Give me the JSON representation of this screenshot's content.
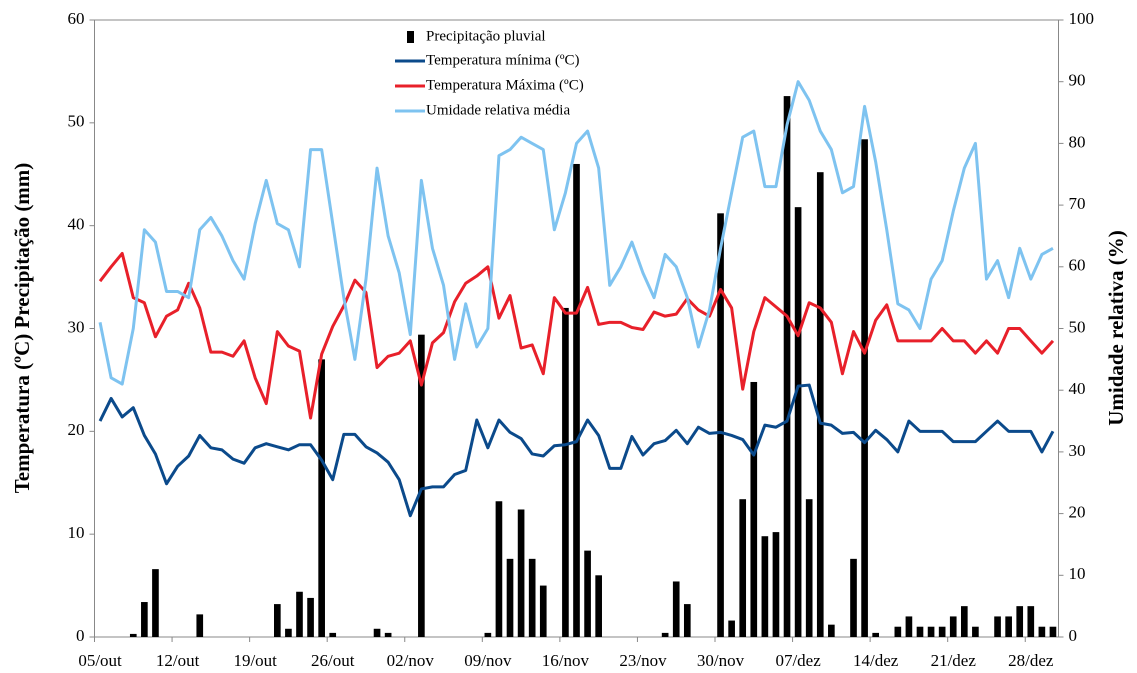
{
  "chart_data": {
    "type": "combo",
    "y_label": "Temperatura (ºC) Precipitação (mm)",
    "y2_label": "Umidade relativa (%)",
    "legend": "top",
    "categories": [
      "05/out",
      null,
      null,
      null,
      null,
      null,
      null,
      "12/out",
      null,
      null,
      null,
      null,
      null,
      null,
      "19/out",
      null,
      null,
      null,
      null,
      null,
      null,
      "26/out",
      null,
      null,
      null,
      null,
      null,
      null,
      "02/nov",
      null,
      null,
      null,
      null,
      null,
      null,
      "09/nov",
      null,
      null,
      null,
      null,
      null,
      null,
      "16/nov",
      null,
      null,
      null,
      null,
      null,
      null,
      "23/nov",
      null,
      null,
      null,
      null,
      null,
      null,
      "30/nov",
      null,
      null,
      null,
      null,
      null,
      null,
      "07/dez",
      null,
      null,
      null,
      null,
      null,
      null,
      "14/dez",
      null,
      null,
      null,
      null,
      null,
      null,
      "21/dez",
      null,
      null,
      null,
      null,
      null,
      null,
      "28/dez",
      null,
      null
    ],
    "ylim": [
      0,
      60
    ],
    "yticks": [
      0,
      10,
      20,
      30,
      40,
      50,
      60
    ],
    "y2lim": [
      0,
      100
    ],
    "y2ticks": [
      0,
      10,
      20,
      30,
      40,
      50,
      60,
      70,
      80,
      90,
      100
    ],
    "series": [
      {
        "name": "Precipitação pluvial",
        "type": "bar",
        "color": "#000000",
        "values": [
          0,
          0,
          0,
          0.3,
          3.4,
          6.6,
          0,
          0,
          0,
          2.2,
          0,
          0,
          0,
          0,
          0,
          0,
          3.2,
          0.8,
          4.4,
          3.8,
          27,
          0.4,
          0,
          0,
          0,
          0.8,
          0.4,
          0,
          0,
          29.4,
          0,
          0,
          0,
          0,
          0,
          0.4,
          13.2,
          7.6,
          12.4,
          7.6,
          5,
          0,
          32,
          46,
          8.4,
          6,
          0,
          0,
          0,
          0,
          0,
          0.4,
          5.4,
          3.2,
          0,
          0,
          41.2,
          1.6,
          13.4,
          24.8,
          9.8,
          10.2,
          52.6,
          41.8,
          13.4,
          45.2,
          1.2,
          0,
          7.6,
          48.4,
          0.4,
          0,
          1,
          2,
          1,
          1,
          1,
          2,
          3,
          1,
          0,
          2,
          2,
          3,
          3,
          1,
          1
        ]
      },
      {
        "name": "Temperatura mínima (ºC)",
        "type": "line",
        "color": "#0b4a8b",
        "values": [
          21,
          23.2,
          21.4,
          22.3,
          19.6,
          17.8,
          14.9,
          16.6,
          17.6,
          19.6,
          18.4,
          18.2,
          17.3,
          16.9,
          18.4,
          18.8,
          18.5,
          18.2,
          18.7,
          18.7,
          17.2,
          15.3,
          19.7,
          19.7,
          18.5,
          17.9,
          17,
          15.3,
          11.8,
          14.4,
          14.6,
          14.6,
          15.8,
          16.2,
          21.1,
          18.4,
          21.1,
          19.9,
          19.3,
          17.8,
          17.6,
          18.6,
          18.7,
          19,
          21.1,
          19.6,
          16.4,
          16.4,
          19.5,
          17.7,
          18.8,
          19.1,
          20.1,
          18.8,
          20.4,
          19.8,
          19.9,
          19.6,
          19.2,
          17.7,
          20.6,
          20.4,
          21,
          24.4,
          24.5,
          20.8,
          20.6,
          19.8,
          19.9,
          18.9,
          20.1,
          19.2,
          18,
          21,
          20,
          20,
          20,
          19,
          19,
          19,
          20,
          21,
          20,
          20,
          20,
          18,
          20
        ]
      },
      {
        "name": "Temperatura Máxima (ºC)",
        "type": "line",
        "color": "#e8202a",
        "values": [
          34.6,
          36,
          37.3,
          33,
          32.5,
          29.2,
          31.2,
          31.8,
          34.4,
          32,
          27.7,
          27.7,
          27.3,
          28.8,
          25.2,
          22.7,
          29.7,
          28.3,
          27.8,
          21.3,
          27.5,
          30.2,
          32.2,
          34.7,
          33.5,
          26.2,
          27.3,
          27.6,
          28.8,
          24.5,
          28.6,
          29.6,
          32.6,
          34.4,
          35.1,
          36,
          31,
          33.2,
          28.1,
          28.4,
          25.6,
          33,
          31.5,
          31.5,
          34,
          30.4,
          30.6,
          30.6,
          30.1,
          29.9,
          31.6,
          31.2,
          31.4,
          32.9,
          31.8,
          31.2,
          33.8,
          32,
          24.1,
          29.7,
          33,
          32.1,
          31.2,
          29.3,
          32.5,
          32,
          30.6,
          25.6,
          29.7,
          27.6,
          30.8,
          32.3,
          28.8,
          28.8,
          28.8,
          28.8,
          30,
          28.8,
          28.8,
          27.6,
          28.8,
          27.6,
          30,
          30,
          28.8,
          27.6,
          28.8
        ]
      },
      {
        "name": "Umidade relativa média",
        "type": "line",
        "axis": "y2",
        "color": "#7ec3f0",
        "values": [
          51,
          42,
          41,
          50,
          66,
          64,
          56,
          56,
          55,
          66,
          68,
          65,
          61,
          58,
          67,
          74,
          67,
          66,
          60,
          79,
          79,
          67,
          55,
          45,
          58,
          76,
          65,
          59,
          49,
          74,
          63,
          57,
          45,
          54,
          47,
          50,
          78,
          79,
          81,
          80,
          79,
          66,
          72,
          80,
          82,
          76,
          57,
          60,
          64,
          59,
          55,
          62,
          60,
          55,
          47,
          53,
          63,
          72,
          81,
          82,
          73,
          73,
          83,
          90,
          87,
          82,
          79,
          72,
          73,
          86,
          77,
          66,
          54,
          53,
          50,
          58,
          61,
          69,
          76,
          80,
          58,
          61,
          55,
          63,
          58,
          62,
          63
        ]
      }
    ]
  }
}
